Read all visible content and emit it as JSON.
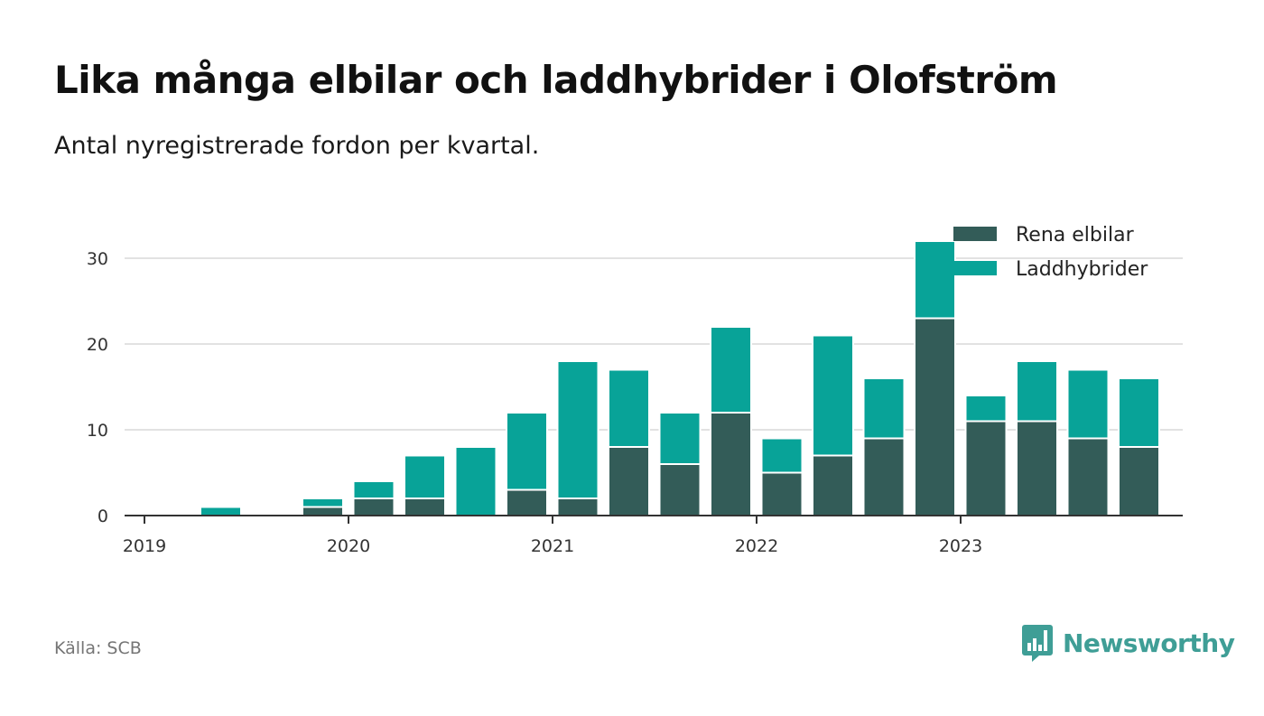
{
  "chart_data": {
    "type": "bar",
    "stacked": true,
    "title": "Lika många elbilar och laddhybrider i Olofström",
    "subtitle": "Antal nyregistrerade fordon per kvartal.",
    "categories": [
      "2019 Q1",
      "2019 Q2",
      "2019 Q3",
      "2019 Q4",
      "2020 Q1",
      "2020 Q2",
      "2020 Q3",
      "2020 Q4",
      "2021 Q1",
      "2021 Q2",
      "2021 Q3",
      "2021 Q4",
      "2022 Q1",
      "2022 Q2",
      "2022 Q3",
      "2022 Q4",
      "2023 Q1",
      "2023 Q2",
      "2023 Q3",
      "2023 Q4"
    ],
    "series": [
      {
        "name": "Rena elbilar",
        "color": "#335c58",
        "values": [
          0,
          0,
          0,
          1,
          2,
          2,
          0,
          3,
          2,
          8,
          6,
          12,
          5,
          7,
          9,
          23,
          11,
          11,
          9,
          8
        ]
      },
      {
        "name": "Laddhybrider",
        "color": "#08a398",
        "values": [
          0,
          1,
          0,
          1,
          2,
          5,
          8,
          9,
          16,
          9,
          6,
          10,
          4,
          14,
          7,
          9,
          3,
          7,
          8,
          8
        ]
      }
    ],
    "x_ticks": [
      "2019",
      "2020",
      "2021",
      "2022",
      "2023"
    ],
    "y_ticks": [
      0,
      10,
      20,
      30
    ],
    "ylim": [
      0,
      33
    ],
    "xlabel": "",
    "ylabel": "",
    "grid": true,
    "legend_position": "top-right"
  },
  "source": "Källa: SCB",
  "brand": "Newsworthy"
}
